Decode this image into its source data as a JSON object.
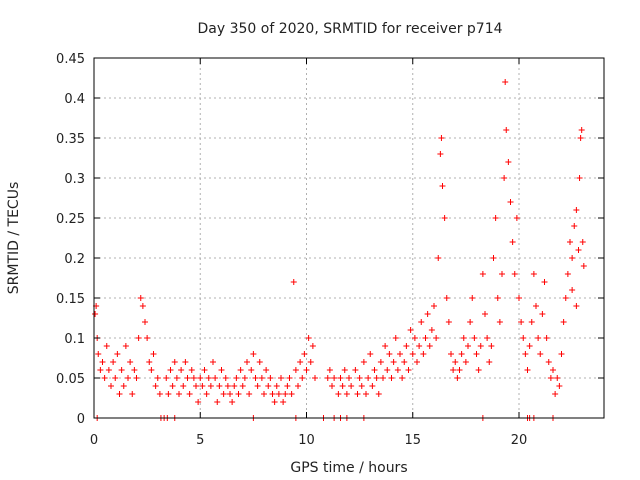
{
  "chart_data": {
    "type": "scatter",
    "title": "Day 350 of 2020, SRMTID for receiver p714",
    "xlabel": "GPS time / hours",
    "ylabel": "SRMTID / TECUs",
    "xlim": [
      0,
      24
    ],
    "ylim": [
      0,
      0.45
    ],
    "xticks": [
      0,
      5,
      10,
      15,
      20
    ],
    "xtick_labels": [
      "0",
      "5",
      "10",
      "15",
      "20"
    ],
    "yticks": [
      0,
      0.05,
      0.1,
      0.15,
      0.2,
      0.25,
      0.3,
      0.35,
      0.4,
      0.45
    ],
    "ytick_labels": [
      "0",
      "0.05",
      "0.1",
      "0.15",
      "0.2",
      "0.25",
      "0.3",
      "0.35",
      "0.4",
      "0.45"
    ],
    "grid": true,
    "marker": "+",
    "color": "#ff0000",
    "series": [
      {
        "name": "SRMTID",
        "points": [
          [
            0.05,
            0.13
          ],
          [
            0.1,
            0.14
          ],
          [
            0.15,
            0.1
          ],
          [
            0.2,
            0.08
          ],
          [
            0.3,
            0.06
          ],
          [
            0.4,
            0.07
          ],
          [
            0.5,
            0.05
          ],
          [
            0.6,
            0.09
          ],
          [
            0.7,
            0.06
          ],
          [
            0.8,
            0.04
          ],
          [
            0.9,
            0.07
          ],
          [
            1.0,
            0.05
          ],
          [
            1.1,
            0.08
          ],
          [
            1.2,
            0.03
          ],
          [
            1.3,
            0.06
          ],
          [
            1.4,
            0.04
          ],
          [
            1.5,
            0.09
          ],
          [
            1.6,
            0.05
          ],
          [
            1.7,
            0.07
          ],
          [
            1.8,
            0.03
          ],
          [
            1.9,
            0.06
          ],
          [
            2.0,
            0.05
          ],
          [
            2.1,
            0.1
          ],
          [
            2.2,
            0.15
          ],
          [
            2.3,
            0.14
          ],
          [
            2.4,
            0.12
          ],
          [
            2.5,
            0.1
          ],
          [
            2.6,
            0.07
          ],
          [
            2.7,
            0.06
          ],
          [
            2.8,
            0.08
          ],
          [
            2.9,
            0.04
          ],
          [
            3.0,
            0.05
          ],
          [
            3.1,
            0.03
          ],
          [
            3.4,
            0.05
          ],
          [
            3.5,
            0.03
          ],
          [
            3.6,
            0.06
          ],
          [
            3.7,
            0.04
          ],
          [
            3.8,
            0.07
          ],
          [
            3.9,
            0.05
          ],
          [
            4.0,
            0.03
          ],
          [
            4.1,
            0.06
          ],
          [
            4.2,
            0.04
          ],
          [
            4.3,
            0.07
          ],
          [
            4.4,
            0.05
          ],
          [
            4.5,
            0.03
          ],
          [
            4.6,
            0.06
          ],
          [
            4.7,
            0.05
          ],
          [
            4.8,
            0.04
          ],
          [
            4.9,
            0.02
          ],
          [
            5.0,
            0.05
          ],
          [
            5.1,
            0.04
          ],
          [
            5.2,
            0.06
          ],
          [
            5.3,
            0.03
          ],
          [
            5.4,
            0.05
          ],
          [
            5.5,
            0.04
          ],
          [
            5.6,
            0.07
          ],
          [
            5.7,
            0.05
          ],
          [
            5.8,
            0.02
          ],
          [
            5.9,
            0.04
          ],
          [
            6.0,
            0.06
          ],
          [
            6.1,
            0.03
          ],
          [
            6.2,
            0.05
          ],
          [
            6.3,
            0.04
          ],
          [
            6.4,
            0.03
          ],
          [
            6.5,
            0.02
          ],
          [
            6.6,
            0.04
          ],
          [
            6.7,
            0.05
          ],
          [
            6.8,
            0.03
          ],
          [
            6.9,
            0.06
          ],
          [
            7.0,
            0.04
          ],
          [
            7.1,
            0.05
          ],
          [
            7.2,
            0.07
          ],
          [
            7.3,
            0.03
          ],
          [
            7.4,
            0.06
          ],
          [
            7.5,
            0.08
          ],
          [
            7.6,
            0.05
          ],
          [
            7.7,
            0.04
          ],
          [
            7.8,
            0.07
          ],
          [
            7.9,
            0.05
          ],
          [
            8.0,
            0.03
          ],
          [
            8.1,
            0.06
          ],
          [
            8.2,
            0.04
          ],
          [
            8.3,
            0.05
          ],
          [
            8.4,
            0.03
          ],
          [
            8.5,
            0.02
          ],
          [
            8.6,
            0.04
          ],
          [
            8.7,
            0.03
          ],
          [
            8.8,
            0.05
          ],
          [
            8.9,
            0.02
          ],
          [
            9.0,
            0.03
          ],
          [
            9.1,
            0.04
          ],
          [
            9.2,
            0.05
          ],
          [
            9.3,
            0.03
          ],
          [
            9.4,
            0.17
          ],
          [
            9.5,
            0.06
          ],
          [
            9.6,
            0.04
          ],
          [
            9.7,
            0.07
          ],
          [
            9.8,
            0.05
          ],
          [
            9.9,
            0.08
          ],
          [
            10.0,
            0.06
          ],
          [
            10.1,
            0.1
          ],
          [
            10.2,
            0.07
          ],
          [
            10.3,
            0.09
          ],
          [
            10.4,
            0.05
          ],
          [
            11.0,
            0.05
          ],
          [
            11.1,
            0.06
          ],
          [
            11.2,
            0.04
          ],
          [
            11.3,
            0.05
          ],
          [
            11.5,
            0.03
          ],
          [
            11.6,
            0.05
          ],
          [
            11.7,
            0.04
          ],
          [
            11.8,
            0.06
          ],
          [
            11.9,
            0.03
          ],
          [
            12.0,
            0.05
          ],
          [
            12.1,
            0.04
          ],
          [
            12.3,
            0.06
          ],
          [
            12.4,
            0.03
          ],
          [
            12.5,
            0.05
          ],
          [
            12.6,
            0.04
          ],
          [
            12.7,
            0.07
          ],
          [
            12.8,
            0.03
          ],
          [
            12.9,
            0.05
          ],
          [
            13.0,
            0.08
          ],
          [
            13.1,
            0.04
          ],
          [
            13.2,
            0.06
          ],
          [
            13.3,
            0.05
          ],
          [
            13.4,
            0.03
          ],
          [
            13.5,
            0.07
          ],
          [
            13.6,
            0.05
          ],
          [
            13.7,
            0.09
          ],
          [
            13.8,
            0.06
          ],
          [
            13.9,
            0.08
          ],
          [
            14.0,
            0.05
          ],
          [
            14.1,
            0.07
          ],
          [
            14.2,
            0.1
          ],
          [
            14.3,
            0.06
          ],
          [
            14.4,
            0.08
          ],
          [
            14.5,
            0.05
          ],
          [
            14.6,
            0.07
          ],
          [
            14.7,
            0.09
          ],
          [
            14.8,
            0.06
          ],
          [
            14.9,
            0.11
          ],
          [
            15.0,
            0.08
          ],
          [
            15.1,
            0.1
          ],
          [
            15.2,
            0.07
          ],
          [
            15.3,
            0.09
          ],
          [
            15.4,
            0.12
          ],
          [
            15.5,
            0.08
          ],
          [
            15.6,
            0.1
          ],
          [
            15.7,
            0.13
          ],
          [
            15.8,
            0.09
          ],
          [
            15.9,
            0.11
          ],
          [
            16.0,
            0.14
          ],
          [
            16.1,
            0.1
          ],
          [
            16.2,
            0.2
          ],
          [
            16.3,
            0.33
          ],
          [
            16.35,
            0.35
          ],
          [
            16.4,
            0.29
          ],
          [
            16.5,
            0.25
          ],
          [
            16.6,
            0.15
          ],
          [
            16.7,
            0.12
          ],
          [
            16.8,
            0.08
          ],
          [
            16.9,
            0.06
          ],
          [
            17.0,
            0.07
          ],
          [
            17.1,
            0.05
          ],
          [
            17.2,
            0.06
          ],
          [
            17.3,
            0.08
          ],
          [
            17.4,
            0.1
          ],
          [
            17.5,
            0.07
          ],
          [
            17.6,
            0.09
          ],
          [
            17.7,
            0.12
          ],
          [
            17.8,
            0.15
          ],
          [
            17.9,
            0.1
          ],
          [
            18.0,
            0.08
          ],
          [
            18.1,
            0.06
          ],
          [
            18.2,
            0.09
          ],
          [
            18.3,
            0.18
          ],
          [
            18.4,
            0.13
          ],
          [
            18.5,
            0.1
          ],
          [
            18.6,
            0.07
          ],
          [
            18.7,
            0.09
          ],
          [
            18.8,
            0.2
          ],
          [
            18.9,
            0.25
          ],
          [
            19.0,
            0.15
          ],
          [
            19.1,
            0.12
          ],
          [
            19.2,
            0.18
          ],
          [
            19.3,
            0.3
          ],
          [
            19.35,
            0.42
          ],
          [
            19.4,
            0.36
          ],
          [
            19.5,
            0.32
          ],
          [
            19.6,
            0.27
          ],
          [
            19.7,
            0.22
          ],
          [
            19.8,
            0.18
          ],
          [
            19.9,
            0.25
          ],
          [
            20.0,
            0.15
          ],
          [
            20.1,
            0.12
          ],
          [
            20.2,
            0.1
          ],
          [
            20.3,
            0.08
          ],
          [
            20.4,
            0.06
          ],
          [
            20.5,
            0.09
          ],
          [
            20.6,
            0.12
          ],
          [
            20.7,
            0.18
          ],
          [
            20.8,
            0.14
          ],
          [
            20.9,
            0.1
          ],
          [
            21.0,
            0.08
          ],
          [
            21.1,
            0.13
          ],
          [
            21.2,
            0.17
          ],
          [
            21.3,
            0.1
          ],
          [
            21.4,
            0.07
          ],
          [
            21.5,
            0.05
          ],
          [
            21.6,
            0.06
          ],
          [
            21.7,
            0.03
          ],
          [
            21.8,
            0.05
          ],
          [
            21.9,
            0.04
          ],
          [
            22.0,
            0.08
          ],
          [
            22.1,
            0.12
          ],
          [
            22.2,
            0.15
          ],
          [
            22.3,
            0.18
          ],
          [
            22.4,
            0.22
          ],
          [
            22.5,
            0.2
          ],
          [
            22.6,
            0.24
          ],
          [
            22.7,
            0.26
          ],
          [
            22.8,
            0.21
          ],
          [
            22.85,
            0.3
          ],
          [
            22.9,
            0.35
          ],
          [
            22.95,
            0.36
          ],
          [
            23.0,
            0.22
          ],
          [
            23.05,
            0.19
          ],
          [
            22.7,
            0.14
          ],
          [
            22.5,
            0.16
          ],
          [
            0.15,
            0.0
          ],
          [
            3.15,
            0.0
          ],
          [
            3.3,
            0.0
          ],
          [
            3.45,
            0.0
          ],
          [
            3.8,
            0.0
          ],
          [
            7.5,
            0.0
          ],
          [
            9.5,
            0.0
          ],
          [
            10.8,
            0.0
          ],
          [
            11.3,
            0.0
          ],
          [
            11.6,
            0.0
          ],
          [
            11.9,
            0.0
          ],
          [
            12.7,
            0.0
          ],
          [
            18.3,
            0.0
          ],
          [
            20.4,
            0.0
          ],
          [
            20.5,
            0.0
          ],
          [
            20.7,
            0.0
          ],
          [
            21.6,
            0.0
          ]
        ]
      }
    ]
  }
}
